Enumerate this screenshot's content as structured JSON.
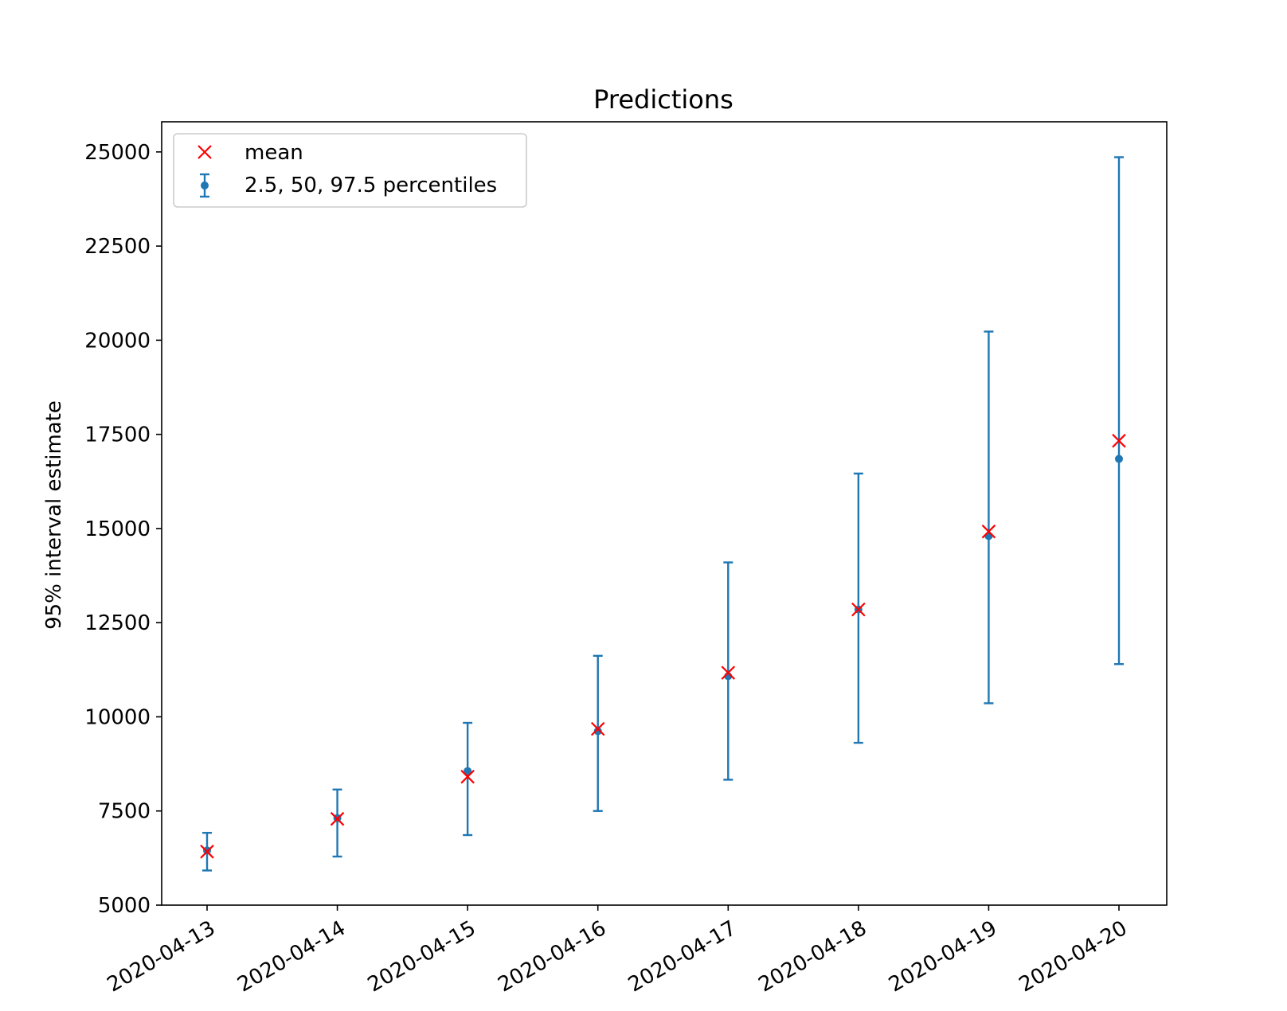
{
  "colors": {
    "errorbar": "#1f77b4",
    "mean_marker": "#ff0000",
    "axis": "#000000",
    "background": "#ffffff"
  },
  "chart_data": {
    "type": "scatter",
    "title": "Predictions",
    "xlabel": "",
    "ylabel": "95% interval estimate",
    "ylim": [
      5000,
      25800
    ],
    "yticks": [
      5000,
      7500,
      10000,
      12500,
      15000,
      17500,
      20000,
      22500,
      25000
    ],
    "yticks_text": [
      "5000",
      "7500",
      "10000",
      "12500",
      "15000",
      "17500",
      "20000",
      "22500",
      "25000"
    ],
    "categories": [
      "2020-04-13",
      "2020-04-14",
      "2020-04-15",
      "2020-04-16",
      "2020-04-17",
      "2020-04-18",
      "2020-04-19",
      "2020-04-20"
    ],
    "x_tick_rotation_deg": 30,
    "grid": false,
    "legend": {
      "placement": "upper-left",
      "entries": [
        "mean",
        "2.5, 50, 97.5 percentiles"
      ]
    },
    "series": [
      {
        "name": "mean",
        "marker": "x",
        "values": [
          6420,
          7290,
          8410,
          9680,
          11170,
          12850,
          14920,
          17330
        ]
      },
      {
        "name": "2.5, 50, 97.5 percentiles",
        "marker": "errorbar",
        "lower": [
          5920,
          6290,
          6860,
          7500,
          8330,
          9310,
          10360,
          11400
        ],
        "median": [
          6450,
          7310,
          8560,
          9620,
          11080,
          12850,
          14800,
          16850
        ],
        "upper": [
          6920,
          8070,
          9840,
          11620,
          14100,
          16460,
          20230,
          24860
        ]
      }
    ]
  }
}
